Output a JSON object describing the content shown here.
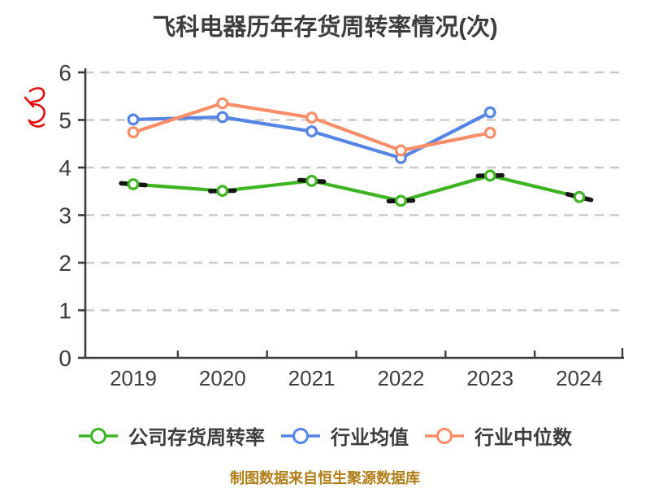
{
  "title": "飞科电器历年存货周转率情况(次)",
  "footer": {
    "text": "制图数据来自恒生聚源数据库",
    "color": "#B07E18"
  },
  "annotation": {
    "name": "red-handwritten-scribble",
    "color": "#E01010"
  },
  "chart_data": {
    "type": "line",
    "title": "飞科电器历年存货周转率情况(次)",
    "categories": [
      "2019",
      "2020",
      "2021",
      "2022",
      "2023",
      "2024"
    ],
    "series": [
      {
        "name": "公司存货周转率",
        "color": "#3FB422",
        "sketch_outline": true,
        "values": [
          3.65,
          3.51,
          3.72,
          3.3,
          3.83,
          3.38
        ]
      },
      {
        "name": "行业均值",
        "color": "#5585E5",
        "sketch_outline": false,
        "values": [
          5.01,
          5.06,
          4.76,
          4.2,
          5.16,
          null
        ]
      },
      {
        "name": "行业中位数",
        "color": "#FB8E68",
        "sketch_outline": false,
        "values": [
          4.74,
          5.35,
          5.05,
          4.36,
          4.73,
          null
        ]
      }
    ],
    "xlabel": "",
    "ylabel": "",
    "ylim": [
      0,
      6
    ],
    "y_ticks": [
      0,
      1,
      2,
      3,
      4,
      5,
      6
    ],
    "grid": "horizontal-dashed",
    "legend_position": "bottom",
    "colors": {
      "axis": "#3D3D3D",
      "grid": "#C9C9C9",
      "tick_label": "#3D3D3D",
      "marker_fill": "#FFFFFF",
      "sketch": "#151515"
    }
  }
}
